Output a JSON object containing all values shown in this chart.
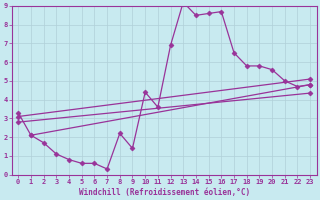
{
  "xlabel": "Windchill (Refroidissement éolien,°C)",
  "ylabel": "",
  "xlim": [
    -0.5,
    23.5
  ],
  "ylim": [
    0,
    9
  ],
  "xticks": [
    0,
    1,
    2,
    3,
    4,
    5,
    6,
    7,
    8,
    9,
    10,
    11,
    12,
    13,
    14,
    15,
    16,
    17,
    18,
    19,
    20,
    21,
    22,
    23
  ],
  "yticks": [
    0,
    1,
    2,
    3,
    4,
    5,
    6,
    7,
    8,
    9
  ],
  "bg_color": "#c8eaf0",
  "grid_color": "#b0d0d8",
  "line_color": "#993399",
  "line1_x": [
    0,
    1,
    2,
    3,
    4,
    5,
    6,
    7,
    8,
    9,
    10,
    11,
    12,
    13,
    14,
    15,
    16,
    17,
    18,
    19,
    20,
    21,
    22,
    23
  ],
  "line1_y": [
    3.3,
    2.1,
    1.7,
    1.1,
    0.8,
    0.6,
    0.6,
    0.3,
    2.2,
    1.4,
    4.4,
    3.6,
    6.9,
    9.2,
    8.5,
    8.6,
    8.7,
    6.5,
    5.8,
    5.8,
    5.6,
    5.0,
    4.7,
    4.8
  ],
  "line2_x": [
    0,
    23
  ],
  "line2_y": [
    2.8,
    4.35
  ],
  "line3_x": [
    1,
    23
  ],
  "line3_y": [
    2.1,
    4.8
  ],
  "line4_x": [
    0,
    23
  ],
  "line4_y": [
    3.1,
    5.1
  ],
  "marker": "D",
  "marker_size": 2.5,
  "linewidth": 0.9
}
